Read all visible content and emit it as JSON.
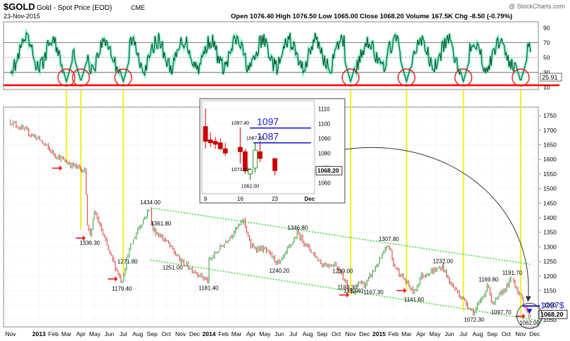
{
  "header": {
    "symbol": "$GOLD",
    "name": "Gold - Spot Price (EOD)",
    "exchange": "CME",
    "date": "23-Nov-2015",
    "quote": "Open 1076.40  High 1076.50  Low 1065.00  Close 1068.20  Volume 167.5K  Chg -8.50 (-0.79%)",
    "watermark": "@ StockCharts.com"
  },
  "chart_data": [
    {
      "type": "line",
      "panel": "oscillator",
      "ylim": [
        10,
        95
      ],
      "y_ticks": [
        10,
        30,
        50,
        70,
        90
      ],
      "reference_lines": [
        30,
        50,
        70
      ],
      "current_value": 25.91,
      "value_label": "25.91",
      "colors": {
        "line": "#004d1a",
        "band": "#33e6b0",
        "support": "#ff0000",
        "circles": "#e61a1a"
      },
      "circle_dates": [
        "2013-03",
        "2013-04",
        "2013-07",
        "2014-11",
        "2015-03",
        "2015-07",
        "2015-11"
      ]
    },
    {
      "type": "candlestick",
      "panel": "price",
      "ylim": [
        1040,
        1760
      ],
      "y_ticks": [
        1050,
        1100,
        1150,
        1200,
        1250,
        1300,
        1350,
        1400,
        1450,
        1500,
        1550,
        1600,
        1650,
        1700,
        1750
      ],
      "x_ticks": [
        "Nov",
        "2013",
        "Feb",
        "Mar",
        "Apr",
        "May",
        "Jun",
        "Jul",
        "Aug",
        "Sep",
        "Oct",
        "Nov",
        "Dec",
        "2014",
        "Feb",
        "Mar",
        "Apr",
        "May",
        "Jun",
        "Jul",
        "Aug",
        "Sep",
        "Oct",
        "Nov",
        "Dec",
        "2015",
        "Feb",
        "Mar",
        "Apr",
        "May",
        "Jun",
        "Jul",
        "Aug",
        "Sep",
        "Oct",
        "Nov",
        "Dec"
      ],
      "x_tick_dates": [
        "2012-11",
        "2013-01",
        "2013-02",
        "2013-03",
        "2013-04",
        "2013-05",
        "2013-06",
        "2013-07",
        "2013-08",
        "2013-09",
        "2013-10",
        "2013-11",
        "2013-12",
        "2014-01",
        "2014-02",
        "2014-03",
        "2014-04",
        "2014-05",
        "2014-06",
        "2014-07",
        "2014-08",
        "2014-09",
        "2014-10",
        "2014-11",
        "2014-12",
        "2015-01",
        "2015-02",
        "2015-03",
        "2015-04",
        "2015-05",
        "2015-06",
        "2015-07",
        "2015-08",
        "2015-09",
        "2015-10",
        "2015-11",
        "2015-12"
      ],
      "bold_ticks": [
        "2013",
        "2014",
        "2015"
      ],
      "price_path": [
        [
          "2012-11",
          1730
        ],
        [
          "2012-12",
          1700
        ],
        [
          "2013-01",
          1670
        ],
        [
          "2013-02",
          1620
        ],
        [
          "2013-03",
          1590
        ],
        [
          "2013-04-10",
          1560
        ],
        [
          "2013-04-15",
          1380
        ],
        [
          "2013-04-20",
          1336.3
        ],
        [
          "2013-05",
          1420
        ],
        [
          "2013-06",
          1280
        ],
        [
          "2013-06-28",
          1179.4
        ],
        [
          "2013-07-10",
          1271.8
        ],
        [
          "2013-08",
          1360
        ],
        [
          "2013-08-28",
          1434
        ],
        [
          "2013-09",
          1361.8
        ],
        [
          "2013-10",
          1320
        ],
        [
          "2013-11",
          1251
        ],
        [
          "2013-12-31",
          1181.4
        ],
        [
          "2014-01",
          1250
        ],
        [
          "2014-02",
          1310
        ],
        [
          "2014-03-17",
          1392
        ],
        [
          "2014-04",
          1300
        ],
        [
          "2014-05",
          1290
        ],
        [
          "2014-06",
          1240.2
        ],
        [
          "2014-07-10",
          1346.8
        ],
        [
          "2014-08",
          1300
        ],
        [
          "2014-09",
          1240
        ],
        [
          "2014-10",
          1239
        ],
        [
          "2014-11-07",
          1130.4
        ],
        [
          "2014-11-20",
          1183.3
        ],
        [
          "2014-12-01",
          1167.3
        ],
        [
          "2015-01-22",
          1307.8
        ],
        [
          "2015-02",
          1239
        ],
        [
          "2015-03-17",
          1141.6
        ],
        [
          "2015-04",
          1200
        ],
        [
          "2015-05-18",
          1232
        ],
        [
          "2015-06",
          1180
        ],
        [
          "2015-07-24",
          1072.3
        ],
        [
          "2015-08-24",
          1169.8
        ],
        [
          "2015-09",
          1097.7
        ],
        [
          "2015-10-14",
          1191.7
        ],
        [
          "2015-11-20",
          1062
        ],
        [
          "2015-11-23",
          1068.2
        ]
      ],
      "labels": [
        {
          "text": "1336.30",
          "date": "2013-04-20",
          "value": 1336.3
        },
        {
          "text": "1179.40",
          "date": "2013-06-28",
          "value": 1179.4
        },
        {
          "text": "1271.80",
          "date": "2013-07-10",
          "value": 1271.8
        },
        {
          "text": "1434.00",
          "date": "2013-08-28",
          "value": 1434
        },
        {
          "text": "1361.80",
          "date": "2013-09-20",
          "value": 1361.8
        },
        {
          "text": "1251.00",
          "date": "2013-10-15",
          "value": 1251
        },
        {
          "text": "1181.40",
          "date": "2013-12-31",
          "value": 1181.4
        },
        {
          "text": "1240.20",
          "date": "2014-06-01",
          "value": 1240.2
        },
        {
          "text": "1346.80",
          "date": "2014-07-10",
          "value": 1346.8
        },
        {
          "text": "1239.00",
          "date": "2014-10-15",
          "value": 1239
        },
        {
          "text": "1183.30",
          "date": "2014-10-25",
          "value": 1183.3
        },
        {
          "text": "1130.40",
          "date": "2014-11-07",
          "value": 1130.4
        },
        {
          "text": "1167.30",
          "date": "2014-12-20",
          "value": 1167.3
        },
        {
          "text": "1307.80",
          "date": "2015-01-22",
          "value": 1307.8
        },
        {
          "text": "1141.60",
          "date": "2015-03-17",
          "value": 1141.6
        },
        {
          "text": "1232.00",
          "date": "2015-05-18",
          "value": 1232
        },
        {
          "text": "1072.30",
          "date": "2015-07-24",
          "value": 1072.3
        },
        {
          "text": "1169.80",
          "date": "2015-08-24",
          "value": 1169.8
        },
        {
          "text": "1097.70",
          "date": "2015-09-20",
          "value": 1097.7
        },
        {
          "text": "1191.70",
          "date": "2015-10-14",
          "value": 1191.7
        },
        {
          "text": "1062.00",
          "date": "2015-11-20",
          "value": 1062
        }
      ],
      "channel_upper": [
        [
          "2013-08-28",
          1434
        ],
        [
          "2015-11-23",
          1240
        ]
      ],
      "channel_lower": [
        [
          "2013-08-28",
          1255
        ],
        [
          "2015-12-20",
          1045
        ]
      ],
      "arrow_dates": [
        "2013-03",
        "2013-04-20",
        "2013-06-28",
        "2014-11-07",
        "2015-03-10",
        "2015-11-20"
      ],
      "last_value": "1068.20",
      "last_value_num": 1068.2,
      "target_value": 1097,
      "target_label": "1097$",
      "colors": {
        "up": "#008000",
        "down": "#cc0000",
        "channel": "#33dd33",
        "cycle_lines": "#eeee22",
        "arrows": "#ee1111",
        "target": "#1a1acc"
      }
    },
    {
      "type": "candlestick",
      "panel": "inset",
      "ylim": [
        1055,
        1113
      ],
      "y_ticks": [
        1060,
        1070,
        1080,
        1090,
        1100,
        1110
      ],
      "x_ticks": [
        "9",
        "16",
        "23",
        "Dec"
      ],
      "x_tick_days": [
        9,
        16,
        23,
        30
      ],
      "candles": [
        {
          "day": 9,
          "open": 1098,
          "high": 1110,
          "low": 1083,
          "close": 1088
        },
        {
          "day": 10,
          "open": 1089,
          "high": 1094,
          "low": 1084,
          "close": 1087
        },
        {
          "day": 11,
          "open": 1088,
          "high": 1091,
          "low": 1083,
          "close": 1086
        },
        {
          "day": 12,
          "open": 1087,
          "high": 1090,
          "low": 1082,
          "close": 1083
        },
        {
          "day": 13,
          "open": 1083,
          "high": 1087,
          "low": 1078,
          "close": 1080
        },
        {
          "day": 16,
          "open": 1084,
          "high": 1097.4,
          "low": 1073,
          "close": 1081
        },
        {
          "day": 17,
          "open": 1081,
          "high": 1083,
          "low": 1066,
          "close": 1068
        },
        {
          "day": 18,
          "open": 1066,
          "high": 1070,
          "low": 1062,
          "close": 1069
        },
        {
          "day": 19,
          "open": 1070,
          "high": 1087.2,
          "low": 1067,
          "close": 1082
        },
        {
          "day": 20,
          "open": 1081,
          "high": 1088,
          "low": 1074,
          "close": 1076.4
        },
        {
          "day": 23,
          "open": 1076.4,
          "high": 1076.5,
          "low": 1065,
          "close": 1068.2
        }
      ],
      "labels": [
        {
          "text": "1097.40",
          "day": 16,
          "value": 1097.4
        },
        {
          "text": "1087.20",
          "day": 19,
          "value": 1087.2
        },
        {
          "text": "1073.00",
          "day": 16,
          "value": 1073
        },
        {
          "text": "1062.00",
          "day": 18,
          "value": 1062
        }
      ],
      "levels": [
        {
          "text": "1097",
          "value": 1097
        },
        {
          "text": "1087",
          "value": 1087
        }
      ],
      "last_value": "1068.20",
      "last_value_num": 1068.2
    }
  ]
}
